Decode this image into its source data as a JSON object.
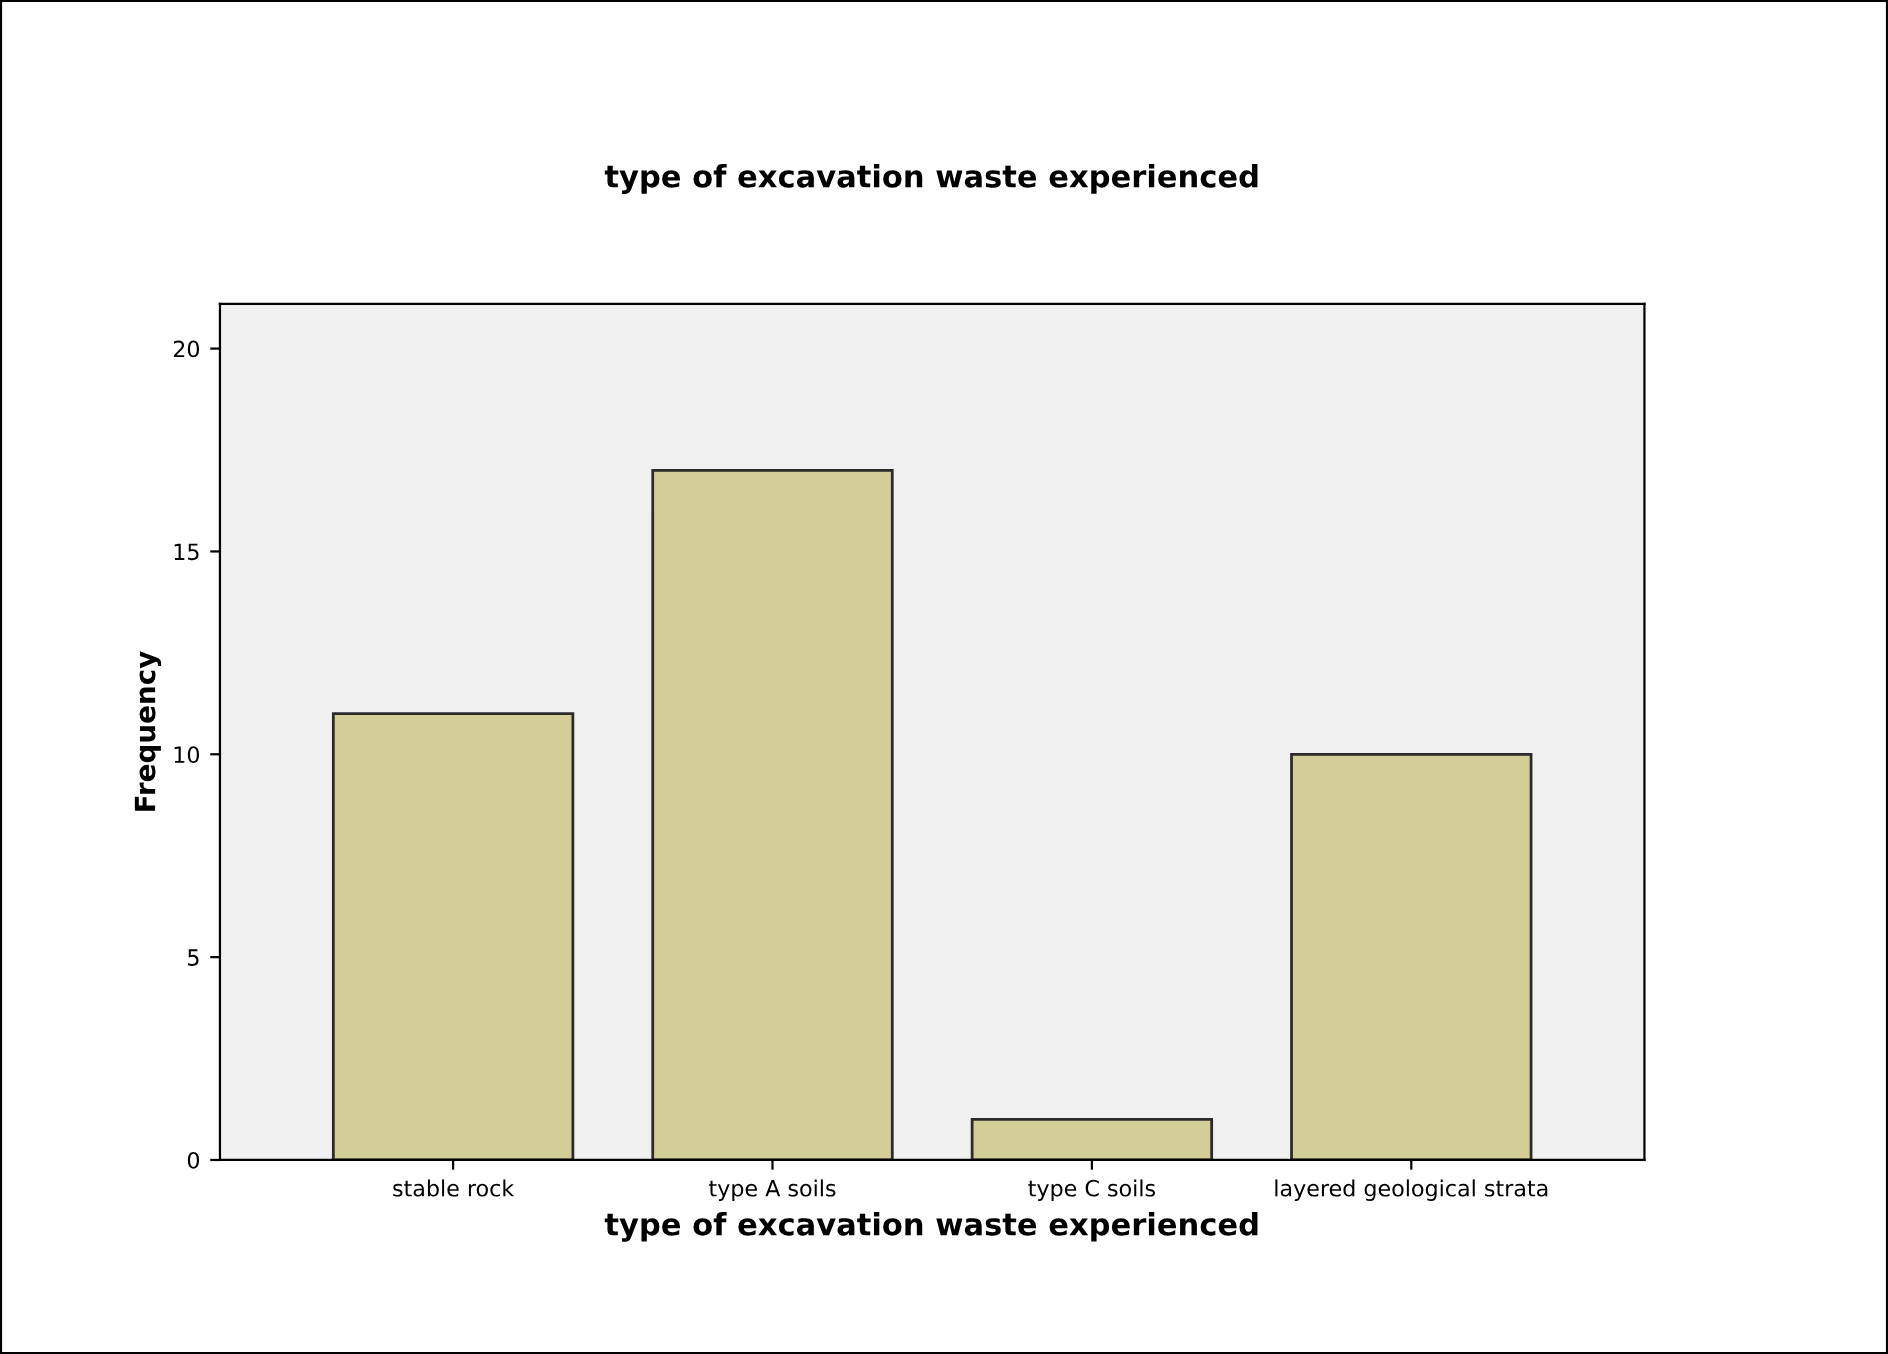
{
  "chart_data": {
    "type": "bar",
    "title": "type of excavation waste experienced",
    "xlabel": "type of excavation waste experienced",
    "ylabel": "Frequency",
    "categories": [
      "stable rock",
      "type A soils",
      "type C soils",
      "layered geological strata"
    ],
    "values": [
      11,
      17,
      1,
      10
    ],
    "color": "#d3ce97",
    "ylim": [
      0,
      21.1
    ],
    "yticks": [
      0,
      5,
      10,
      15,
      20
    ],
    "grid": false,
    "legend": false
  }
}
